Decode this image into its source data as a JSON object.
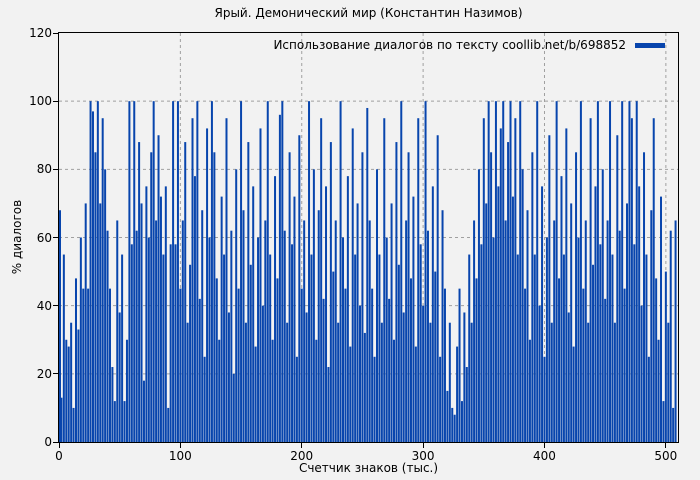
{
  "title": "Ярый. Демонический мир (Константин Назимов)",
  "legend": {
    "label": "Использование диалогов по тексту coollib.net/b/698852",
    "swatch_color": "#0845ad"
  },
  "axes": {
    "x_label": "Счетчик знаков (тыс.)",
    "y_label": "% диалогов",
    "x_ticks": [
      0,
      100,
      200,
      300,
      400,
      500
    ],
    "y_ticks": [
      0,
      20,
      40,
      60,
      80,
      100,
      120
    ],
    "xlim": [
      0,
      510
    ],
    "ylim": [
      0,
      120
    ]
  },
  "colors": {
    "bar": "#0845ad",
    "grid": "#a0a0a0",
    "axis": "#000000",
    "background": "#f2f2f2",
    "text": "#000000"
  },
  "chart_data": {
    "type": "bar",
    "title": "Ярый. Демонический мир (Константин Назимов)",
    "xlabel": "Счетчик знаков (тыс.)",
    "ylabel": "% диалогов",
    "series_name": "Использование диалогов по тексту coollib.net/b/698852",
    "xlim": [
      0,
      510
    ],
    "ylim": [
      0,
      120
    ],
    "grid": true,
    "legend_position": "top-right",
    "x_start": 0,
    "x_step": 2,
    "values": [
      68,
      13,
      55,
      30,
      28,
      35,
      10,
      48,
      33,
      60,
      45,
      70,
      45,
      100,
      97,
      85,
      100,
      70,
      95,
      80,
      62,
      45,
      22,
      12,
      65,
      38,
      55,
      12,
      30,
      100,
      58,
      100,
      62,
      88,
      70,
      18,
      75,
      60,
      85,
      100,
      65,
      90,
      72,
      55,
      75,
      10,
      58,
      100,
      58,
      100,
      45,
      65,
      88,
      35,
      52,
      95,
      78,
      100,
      42,
      68,
      25,
      92,
      60,
      100,
      85,
      48,
      30,
      72,
      55,
      95,
      38,
      62,
      20,
      80,
      45,
      100,
      68,
      35,
      88,
      52,
      75,
      28,
      60,
      92,
      40,
      65,
      100,
      55,
      30,
      78,
      48,
      96,
      100,
      62,
      35,
      85,
      58,
      72,
      25,
      90,
      45,
      65,
      38,
      100,
      55,
      80,
      30,
      68,
      95,
      42,
      75,
      22,
      88,
      50,
      65,
      35,
      100,
      60,
      45,
      78,
      28,
      92,
      55,
      70,
      40,
      85,
      32,
      98,
      65,
      45,
      25,
      80,
      55,
      35,
      95,
      60,
      42,
      70,
      30,
      88,
      52,
      100,
      38,
      65,
      85,
      48,
      72,
      28,
      95,
      58,
      40,
      100,
      62,
      35,
      75,
      50,
      90,
      25,
      68,
      45,
      15,
      35,
      10,
      8,
      28,
      45,
      12,
      38,
      22,
      55,
      35,
      65,
      48,
      80,
      58,
      95,
      70,
      100,
      85,
      60,
      100,
      75,
      92,
      100,
      65,
      88,
      100,
      72,
      95,
      55,
      100,
      80,
      45,
      68,
      30,
      85,
      55,
      100,
      40,
      75,
      25,
      60,
      90,
      35,
      65,
      100,
      48,
      78,
      55,
      92,
      38,
      70,
      28,
      85,
      60,
      100,
      45,
      65,
      35,
      95,
      52,
      75,
      100,
      58,
      80,
      42,
      65,
      100,
      55,
      35,
      90,
      62,
      100,
      45,
      70,
      100,
      95,
      58,
      100,
      75,
      40,
      85,
      55,
      25,
      68,
      95,
      48,
      30,
      72,
      12,
      50,
      35,
      62,
      10,
      65
    ]
  }
}
